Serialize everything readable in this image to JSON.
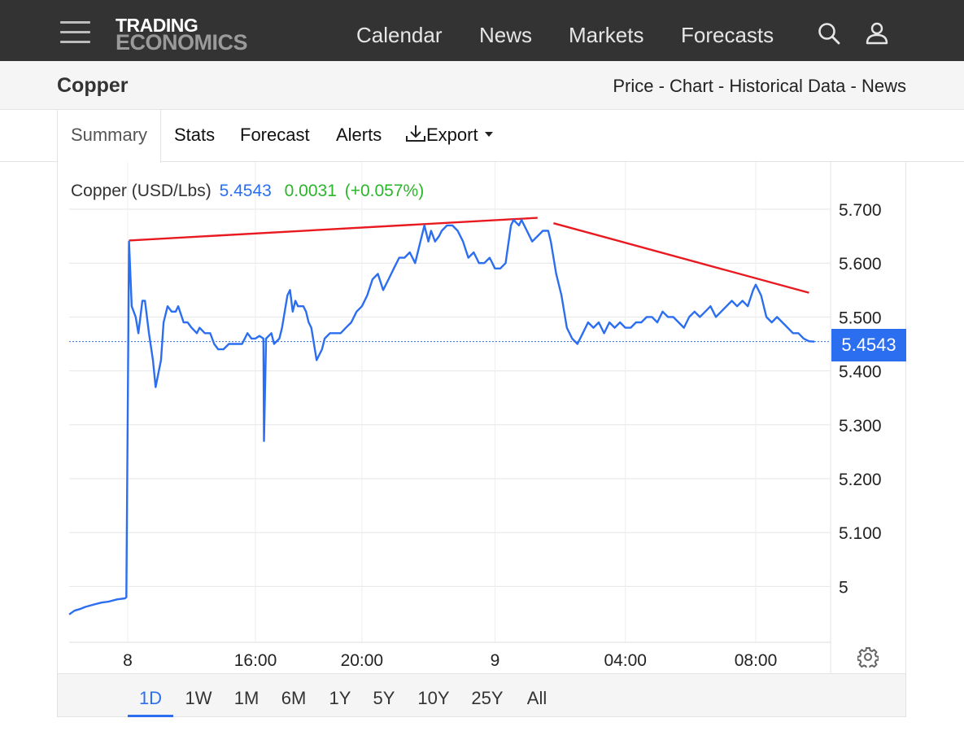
{
  "header": {
    "logo_line1": "TRADING",
    "logo_line2": "ECONOMICS",
    "nav": [
      "Calendar",
      "News",
      "Markets",
      "Forecasts"
    ],
    "icons": [
      "menu-icon",
      "search-icon",
      "user-icon"
    ]
  },
  "subheader": {
    "title": "Copper",
    "links": [
      "Price",
      "Chart",
      "Historical Data",
      "News"
    ],
    "separator": " - "
  },
  "tabs": {
    "summary": "Summary",
    "stats": "Stats",
    "forecast": "Forecast",
    "alerts": "Alerts",
    "export": "Export"
  },
  "legend": {
    "name": "Copper (USD/Lbs)",
    "price": "5.4543",
    "change": "0.0031",
    "change_pct": "(+0.057%)"
  },
  "price_tag": "5.4543",
  "ranges": {
    "items": [
      "1D",
      "1W",
      "1M",
      "6M",
      "1Y",
      "5Y",
      "10Y",
      "25Y",
      "All"
    ],
    "active": "1D"
  },
  "colors": {
    "series": "#2b6ef0",
    "trendline": "#e8191f",
    "change_positive": "#2bb52b",
    "header_bg": "#333333"
  },
  "chart_data": {
    "type": "line",
    "ylim": [
      4.9,
      5.75
    ],
    "y_ticks": [
      5.7,
      5.6,
      5.5,
      5.4,
      5.3,
      5.2,
      5.1,
      5.0
    ],
    "y_tick_labels": [
      "5.700",
      "5.600",
      "5.500",
      "5.400",
      "5.300",
      "5.200",
      "5.100",
      "5"
    ],
    "x_tick_labels": [
      "8",
      "16:00",
      "20:00",
      "9",
      "04:00",
      "08:00"
    ],
    "x_range_hours": [
      0,
      26.7
    ],
    "x_tick_hours": [
      2.2,
      7.0,
      11.0,
      16.0,
      20.9,
      25.8
    ],
    "last_value": 5.4543,
    "series": [
      {
        "points": [
          [
            0,
            4.948
          ],
          [
            0.2,
            4.955
          ],
          [
            0.4,
            4.958
          ],
          [
            0.6,
            4.962
          ],
          [
            0.9,
            4.966
          ],
          [
            1.2,
            4.97
          ],
          [
            1.5,
            4.972
          ],
          [
            1.8,
            4.976
          ],
          [
            2.1,
            4.978
          ],
          [
            2.15,
            4.98
          ],
          [
            2.25,
            5.64
          ],
          [
            2.35,
            5.52
          ],
          [
            2.5,
            5.5
          ],
          [
            2.6,
            5.47
          ],
          [
            2.75,
            5.53
          ],
          [
            2.85,
            5.53
          ],
          [
            3.0,
            5.47
          ],
          [
            3.15,
            5.42
          ],
          [
            3.25,
            5.37
          ],
          [
            3.45,
            5.42
          ],
          [
            3.55,
            5.49
          ],
          [
            3.7,
            5.52
          ],
          [
            3.85,
            5.51
          ],
          [
            4.0,
            5.51
          ],
          [
            4.1,
            5.52
          ],
          [
            4.3,
            5.49
          ],
          [
            4.45,
            5.49
          ],
          [
            4.6,
            5.48
          ],
          [
            4.8,
            5.47
          ],
          [
            4.9,
            5.48
          ],
          [
            5.1,
            5.47
          ],
          [
            5.3,
            5.47
          ],
          [
            5.45,
            5.45
          ],
          [
            5.6,
            5.44
          ],
          [
            5.8,
            5.44
          ],
          [
            6.0,
            5.45
          ],
          [
            6.2,
            5.45
          ],
          [
            6.3,
            5.45
          ],
          [
            6.5,
            5.45
          ],
          [
            6.7,
            5.47
          ],
          [
            6.85,
            5.46
          ],
          [
            7.0,
            5.46
          ],
          [
            7.15,
            5.465
          ],
          [
            7.3,
            5.46
          ],
          [
            7.32,
            5.27
          ],
          [
            7.4,
            5.46
          ],
          [
            7.6,
            5.47
          ],
          [
            7.7,
            5.45
          ],
          [
            7.9,
            5.46
          ],
          [
            8.0,
            5.48
          ],
          [
            8.2,
            5.54
          ],
          [
            8.3,
            5.55
          ],
          [
            8.4,
            5.51
          ],
          [
            8.5,
            5.53
          ],
          [
            8.6,
            5.52
          ],
          [
            8.8,
            5.52
          ],
          [
            8.9,
            5.51
          ],
          [
            9.0,
            5.49
          ],
          [
            9.1,
            5.48
          ],
          [
            9.3,
            5.42
          ],
          [
            9.5,
            5.44
          ],
          [
            9.6,
            5.46
          ],
          [
            9.8,
            5.47
          ],
          [
            10.0,
            5.47
          ],
          [
            10.2,
            5.47
          ],
          [
            10.4,
            5.48
          ],
          [
            10.6,
            5.49
          ],
          [
            10.8,
            5.51
          ],
          [
            11.0,
            5.52
          ],
          [
            11.2,
            5.54
          ],
          [
            11.4,
            5.57
          ],
          [
            11.6,
            5.58
          ],
          [
            11.8,
            5.55
          ],
          [
            12.0,
            5.57
          ],
          [
            12.2,
            5.59
          ],
          [
            12.4,
            5.61
          ],
          [
            12.6,
            5.61
          ],
          [
            12.8,
            5.62
          ],
          [
            13.0,
            5.6
          ],
          [
            13.2,
            5.64
          ],
          [
            13.35,
            5.67
          ],
          [
            13.5,
            5.64
          ],
          [
            13.6,
            5.66
          ],
          [
            13.75,
            5.64
          ],
          [
            13.9,
            5.65
          ],
          [
            14.0,
            5.66
          ],
          [
            14.2,
            5.67
          ],
          [
            14.4,
            5.67
          ],
          [
            14.6,
            5.66
          ],
          [
            14.8,
            5.64
          ],
          [
            15.0,
            5.61
          ],
          [
            15.2,
            5.62
          ],
          [
            15.4,
            5.6
          ],
          [
            15.6,
            5.6
          ],
          [
            15.8,
            5.61
          ],
          [
            15.9,
            5.6
          ],
          [
            16.0,
            5.59
          ],
          [
            16.2,
            5.59
          ],
          [
            16.4,
            5.6
          ],
          [
            16.6,
            5.67
          ],
          [
            16.7,
            5.68
          ],
          [
            16.9,
            5.67
          ],
          [
            17.0,
            5.68
          ],
          [
            17.2,
            5.66
          ],
          [
            17.4,
            5.64
          ],
          [
            17.6,
            5.65
          ],
          [
            17.8,
            5.66
          ],
          [
            18.0,
            5.66
          ],
          [
            18.1,
            5.64
          ],
          [
            18.3,
            5.58
          ],
          [
            18.5,
            5.54
          ],
          [
            18.6,
            5.51
          ],
          [
            18.7,
            5.48
          ],
          [
            18.9,
            5.46
          ],
          [
            19.1,
            5.45
          ],
          [
            19.3,
            5.47
          ],
          [
            19.5,
            5.49
          ],
          [
            19.7,
            5.48
          ],
          [
            19.9,
            5.49
          ],
          [
            20.1,
            5.47
          ],
          [
            20.3,
            5.49
          ],
          [
            20.5,
            5.48
          ],
          [
            20.7,
            5.49
          ],
          [
            20.9,
            5.48
          ],
          [
            21.1,
            5.48
          ],
          [
            21.3,
            5.49
          ],
          [
            21.5,
            5.49
          ],
          [
            21.7,
            5.5
          ],
          [
            21.9,
            5.5
          ],
          [
            22.1,
            5.49
          ],
          [
            22.3,
            5.51
          ],
          [
            22.5,
            5.5
          ],
          [
            22.7,
            5.5
          ],
          [
            22.9,
            5.49
          ],
          [
            23.1,
            5.48
          ],
          [
            23.3,
            5.5
          ],
          [
            23.5,
            5.51
          ],
          [
            23.7,
            5.5
          ],
          [
            23.9,
            5.51
          ],
          [
            24.1,
            5.52
          ],
          [
            24.3,
            5.5
          ],
          [
            24.5,
            5.51
          ],
          [
            24.7,
            5.52
          ],
          [
            24.9,
            5.53
          ],
          [
            25.1,
            5.52
          ],
          [
            25.3,
            5.53
          ],
          [
            25.5,
            5.52
          ],
          [
            25.7,
            5.55
          ],
          [
            25.8,
            5.56
          ],
          [
            26.0,
            5.54
          ],
          [
            26.2,
            5.5
          ],
          [
            26.4,
            5.49
          ],
          [
            26.6,
            5.5
          ],
          [
            26.8,
            5.49
          ],
          [
            27.0,
            5.48
          ],
          [
            27.2,
            5.47
          ],
          [
            27.4,
            5.47
          ],
          [
            27.6,
            5.46
          ],
          [
            27.8,
            5.455
          ],
          [
            28.0,
            5.4543
          ]
        ]
      }
    ],
    "trendlines": [
      {
        "from": [
          2.25,
          5.642
        ],
        "to": [
          17.6,
          5.684
        ]
      },
      {
        "from": [
          18.2,
          5.674
        ],
        "to": [
          27.8,
          5.545
        ]
      }
    ]
  }
}
